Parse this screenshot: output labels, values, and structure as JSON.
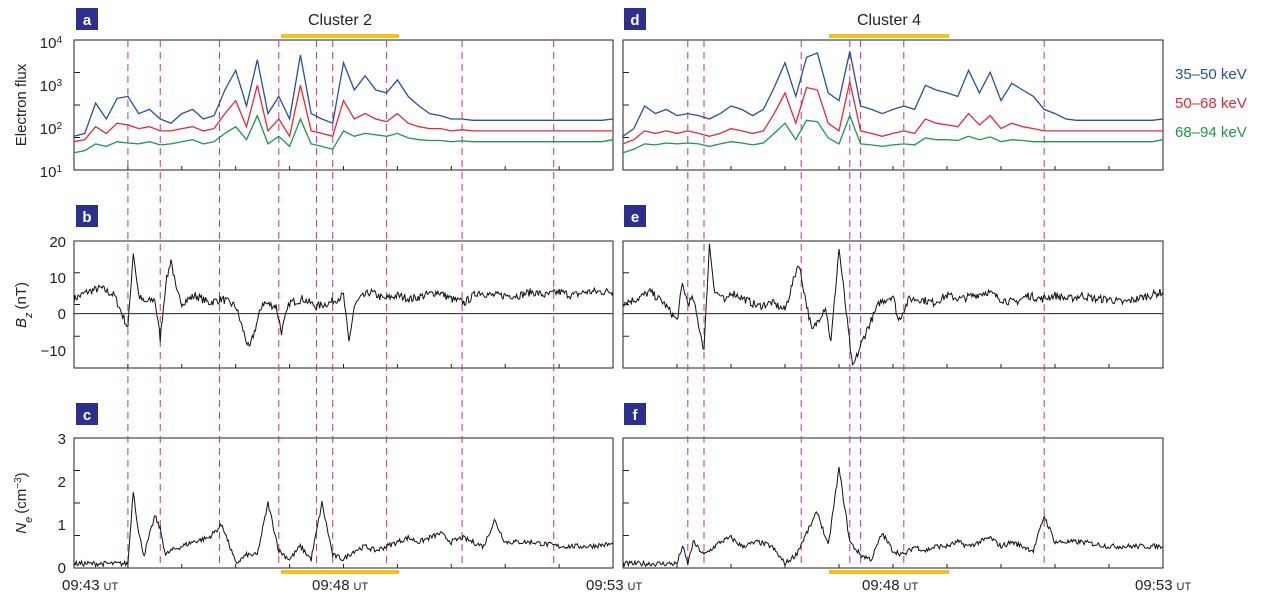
{
  "colors": {
    "flux_35_50": "#2b4f9e",
    "flux_50_68": "#e8283a",
    "flux_68_94": "#1a9a4a",
    "trace": "#111111",
    "dashed": "#b5359c",
    "bar": "#f2c21b",
    "tag_bg": "#2d2f8f"
  },
  "chart_data": [
    {
      "panel": "a",
      "type": "line",
      "title": "Cluster 2",
      "ylabel": "Electron flux",
      "yscale": "log",
      "yticks": [
        "10",
        "10",
        "10",
        "10"
      ],
      "ytick_exponents": [
        "1",
        "2",
        "3",
        "4"
      ],
      "ylim": [
        10,
        10000
      ],
      "series": [
        {
          "name": "35–50 keV",
          "x": [
            0,
            0.2,
            0.4,
            0.6,
            0.8,
            1.0,
            1.2,
            1.4,
            1.6,
            1.8,
            2.0,
            2.2,
            2.4,
            2.6,
            2.8,
            3.0,
            3.2,
            3.4,
            3.6,
            3.8,
            4.0,
            4.2,
            4.4,
            4.6,
            4.8,
            5.0,
            5.2,
            5.4,
            5.6,
            5.8,
            6.0,
            6.2,
            6.4,
            6.6,
            6.8,
            7.0,
            7.2,
            7.4,
            7.6,
            7.8,
            8.0,
            8.2,
            8.4,
            8.6,
            8.8,
            9.0,
            9.2,
            9.4,
            9.6,
            9.8,
            10.0
          ],
          "values": [
            60,
            70,
            350,
            150,
            450,
            500,
            200,
            250,
            150,
            120,
            200,
            250,
            150,
            180,
            700,
            2000,
            300,
            3500,
            200,
            500,
            150,
            4500,
            200,
            150,
            120,
            3000,
            700,
            1500,
            700,
            600,
            1200,
            500,
            300,
            200,
            180,
            150,
            150,
            140,
            140,
            140,
            140,
            140,
            140,
            140,
            140,
            140,
            140,
            140,
            140,
            140,
            150
          ]
        },
        {
          "name": "50–68 keV",
          "x": [
            0,
            0.2,
            0.4,
            0.6,
            0.8,
            1.0,
            1.2,
            1.4,
            1.6,
            1.8,
            2.0,
            2.2,
            2.4,
            2.6,
            2.8,
            3.0,
            3.2,
            3.4,
            3.6,
            3.8,
            4.0,
            4.2,
            4.4,
            4.6,
            4.8,
            5.0,
            5.2,
            5.4,
            5.6,
            5.8,
            6.0,
            6.2,
            6.4,
            6.6,
            6.8,
            7.0,
            7.2,
            7.4,
            7.6,
            7.8,
            8.0,
            8.2,
            8.4,
            8.6,
            8.8,
            9.0,
            9.2,
            9.4,
            9.6,
            9.8,
            10.0
          ],
          "values": [
            45,
            50,
            100,
            70,
            120,
            110,
            90,
            100,
            80,
            80,
            90,
            100,
            80,
            90,
            200,
            400,
            100,
            900,
            80,
            150,
            60,
            900,
            80,
            70,
            60,
            400,
            150,
            200,
            150,
            130,
            200,
            120,
            100,
            90,
            90,
            80,
            85,
            80,
            80,
            80,
            80,
            80,
            80,
            80,
            80,
            80,
            80,
            80,
            80,
            80,
            80
          ]
        },
        {
          "name": "68–94 keV",
          "x": [
            0,
            0.2,
            0.4,
            0.6,
            0.8,
            1.0,
            1.2,
            1.4,
            1.6,
            1.8,
            2.0,
            2.2,
            2.4,
            2.6,
            2.8,
            3.0,
            3.2,
            3.4,
            3.6,
            3.8,
            4.0,
            4.2,
            4.4,
            4.6,
            4.8,
            5.0,
            5.2,
            5.4,
            5.6,
            5.8,
            6.0,
            6.2,
            6.4,
            6.6,
            6.8,
            7.0,
            7.2,
            7.4,
            7.6,
            7.8,
            8.0,
            8.2,
            8.4,
            8.6,
            8.8,
            9.0,
            9.2,
            9.4,
            9.6,
            9.8,
            10.0
          ],
          "values": [
            25,
            28,
            40,
            35,
            45,
            42,
            40,
            45,
            38,
            40,
            45,
            50,
            40,
            45,
            70,
            100,
            50,
            180,
            40,
            60,
            35,
            150,
            40,
            35,
            30,
            80,
            60,
            70,
            65,
            60,
            70,
            55,
            50,
            48,
            48,
            45,
            47,
            45,
            45,
            45,
            45,
            45,
            45,
            45,
            45,
            45,
            45,
            45,
            45,
            45,
            50
          ]
        }
      ]
    },
    {
      "panel": "d",
      "type": "line",
      "title": "Cluster 4",
      "ylim": [
        10,
        10000
      ],
      "yscale": "log",
      "series": [
        {
          "name": "35–50 keV",
          "x": [
            0,
            0.2,
            0.4,
            0.6,
            0.8,
            1.0,
            1.2,
            1.4,
            1.6,
            1.8,
            2.0,
            2.2,
            2.4,
            2.6,
            2.8,
            3.0,
            3.2,
            3.4,
            3.6,
            3.8,
            4.0,
            4.2,
            4.4,
            4.6,
            4.8,
            5.0,
            5.2,
            5.4,
            5.6,
            5.8,
            6.0,
            6.2,
            6.4,
            6.6,
            6.8,
            7.0,
            7.2,
            7.4,
            7.6,
            7.8,
            8.0,
            8.2,
            8.4,
            8.6,
            8.8,
            9.0,
            9.2,
            9.4,
            9.6,
            9.8,
            10.0
          ],
          "values": [
            60,
            90,
            300,
            200,
            250,
            180,
            200,
            180,
            150,
            200,
            300,
            250,
            180,
            250,
            800,
            3000,
            500,
            4000,
            5000,
            600,
            400,
            5500,
            300,
            250,
            200,
            250,
            300,
            250,
            900,
            700,
            600,
            500,
            2000,
            600,
            1800,
            400,
            1000,
            700,
            500,
            250,
            200,
            150,
            140,
            140,
            140,
            140,
            140,
            140,
            140,
            140,
            150
          ]
        },
        {
          "name": "50–68 keV",
          "x": [
            0,
            0.2,
            0.4,
            0.6,
            0.8,
            1.0,
            1.2,
            1.4,
            1.6,
            1.8,
            2.0,
            2.2,
            2.4,
            2.6,
            2.8,
            3.0,
            3.2,
            3.4,
            3.6,
            3.8,
            4.0,
            4.2,
            4.4,
            4.6,
            4.8,
            5.0,
            5.2,
            5.4,
            5.6,
            5.8,
            6.0,
            6.2,
            6.4,
            6.6,
            6.8,
            7.0,
            7.2,
            7.4,
            7.6,
            7.8,
            8.0,
            8.2,
            8.4,
            8.6,
            8.8,
            9.0,
            9.2,
            9.4,
            9.6,
            9.8,
            10.0
          ],
          "values": [
            40,
            50,
            80,
            70,
            80,
            70,
            80,
            70,
            60,
            70,
            90,
            80,
            70,
            80,
            200,
            600,
            120,
            800,
            700,
            120,
            80,
            1100,
            80,
            70,
            60,
            70,
            80,
            70,
            150,
            120,
            110,
            100,
            200,
            110,
            180,
            90,
            120,
            100,
            90,
            80,
            80,
            80,
            80,
            80,
            80,
            80,
            80,
            80,
            80,
            80,
            80
          ]
        },
        {
          "name": "68–94 keV",
          "x": [
            0,
            0.2,
            0.4,
            0.6,
            0.8,
            1.0,
            1.2,
            1.4,
            1.6,
            1.8,
            2.0,
            2.2,
            2.4,
            2.6,
            2.8,
            3.0,
            3.2,
            3.4,
            3.6,
            3.8,
            4.0,
            4.2,
            4.4,
            4.6,
            4.8,
            5.0,
            5.2,
            5.4,
            5.6,
            5.8,
            6.0,
            6.2,
            6.4,
            6.6,
            6.8,
            7.0,
            7.2,
            7.4,
            7.6,
            7.8,
            8.0,
            8.2,
            8.4,
            8.6,
            8.8,
            9.0,
            9.2,
            9.4,
            9.6,
            9.8,
            10.0
          ],
          "values": [
            25,
            30,
            40,
            38,
            42,
            40,
            42,
            40,
            35,
            40,
            45,
            42,
            38,
            42,
            70,
            120,
            50,
            140,
            130,
            55,
            40,
            180,
            40,
            38,
            35,
            38,
            40,
            38,
            55,
            50,
            50,
            48,
            60,
            50,
            58,
            45,
            50,
            48,
            45,
            45,
            45,
            45,
            45,
            45,
            45,
            45,
            45,
            45,
            45,
            45,
            50
          ]
        }
      ]
    },
    {
      "panel": "b",
      "type": "line",
      "ylabel": "B",
      "ylabel_sub": "z",
      "ylabel_unit": "(nT)",
      "yticks": [
        "20",
        "10",
        "0",
        "−10"
      ],
      "ylim": [
        -15,
        20
      ],
      "x": [
        0,
        0.25,
        0.5,
        0.75,
        1.0,
        1.1,
        1.2,
        1.3,
        1.5,
        1.6,
        1.7,
        1.8,
        1.9,
        2.0,
        2.25,
        2.5,
        2.75,
        3.0,
        3.25,
        3.5,
        3.75,
        3.85,
        4.0,
        4.25,
        4.5,
        4.75,
        5.0,
        5.1,
        5.2,
        5.3,
        5.5,
        5.75,
        6.0,
        6.25,
        6.5,
        6.75,
        7.0,
        7.25,
        7.5,
        7.75,
        8.0,
        8.25,
        8.5,
        8.75,
        9.0,
        9.25,
        9.5,
        9.75,
        10.0
      ],
      "values": [
        4,
        6,
        7,
        5,
        -4,
        17,
        5,
        3,
        4,
        -7,
        8,
        15,
        6,
        3,
        5,
        3,
        4,
        2,
        -10,
        3,
        2,
        -5,
        3,
        4,
        2,
        3,
        5,
        -8,
        2,
        4,
        6,
        4,
        5,
        4,
        5,
        6,
        4,
        3,
        6,
        5,
        5,
        5,
        6,
        5,
        6,
        5,
        6,
        6,
        6
      ]
    },
    {
      "panel": "e",
      "type": "line",
      "ylim": [
        -15,
        20
      ],
      "x": [
        0,
        0.25,
        0.5,
        0.75,
        1.0,
        1.1,
        1.2,
        1.3,
        1.5,
        1.6,
        1.7,
        1.8,
        1.9,
        2.0,
        2.25,
        2.5,
        2.75,
        3.0,
        3.25,
        3.5,
        3.75,
        3.85,
        4.0,
        4.25,
        4.5,
        4.75,
        5.0,
        5.1,
        5.2,
        5.3,
        5.5,
        5.75,
        6.0,
        6.25,
        6.5,
        6.75,
        7.0,
        7.25,
        7.5,
        7.75,
        8.0,
        8.25,
        8.5,
        8.75,
        9.0,
        9.25,
        9.5,
        9.75,
        10.0
      ],
      "values": [
        3,
        4,
        6,
        3,
        -2,
        8,
        3,
        4,
        -10,
        19,
        6,
        5,
        3,
        6,
        4,
        2,
        3,
        1,
        14,
        -5,
        2,
        -8,
        18,
        -15,
        -5,
        3,
        5,
        -2,
        1,
        4,
        4,
        3,
        5,
        4,
        5,
        6,
        4,
        3,
        5,
        4,
        5,
        4,
        5,
        4,
        4,
        3,
        4,
        5,
        6
      ]
    },
    {
      "panel": "c",
      "type": "line",
      "ylabel": "N",
      "ylabel_sub": "e",
      "ylabel_unit": "(cm",
      "ylabel_sup": "−3",
      "ylabel_close": ")",
      "yticks": [
        "3",
        "2",
        "1",
        "0"
      ],
      "ylim": [
        0,
        3
      ],
      "x": [
        0,
        0.5,
        1.0,
        1.1,
        1.2,
        1.3,
        1.5,
        1.6,
        1.7,
        1.8,
        2.0,
        2.2,
        2.5,
        2.75,
        3.0,
        3.2,
        3.4,
        3.6,
        3.8,
        4.0,
        4.2,
        4.4,
        4.6,
        4.8,
        5.0,
        5.2,
        5.4,
        5.6,
        5.8,
        6.0,
        6.2,
        6.4,
        6.6,
        6.8,
        7.0,
        7.2,
        7.4,
        7.6,
        7.8,
        8.0,
        8.5,
        9.0,
        9.5,
        10.0
      ],
      "values": [
        0.1,
        0.1,
        0.1,
        1.8,
        0.8,
        0.3,
        1.2,
        0.9,
        0.3,
        0.4,
        0.5,
        0.6,
        0.7,
        1.0,
        0.1,
        0.3,
        0.3,
        1.5,
        0.4,
        0.2,
        0.5,
        0.2,
        1.5,
        0.3,
        0.2,
        0.4,
        0.5,
        0.4,
        0.5,
        0.6,
        0.7,
        0.6,
        0.7,
        0.8,
        0.6,
        0.7,
        0.6,
        0.5,
        1.1,
        0.6,
        0.6,
        0.5,
        0.5,
        0.55
      ]
    },
    {
      "panel": "f",
      "type": "line",
      "ylim": [
        0,
        3
      ],
      "x": [
        0,
        0.5,
        1.0,
        1.1,
        1.2,
        1.3,
        1.5,
        1.6,
        1.7,
        1.8,
        2.0,
        2.2,
        2.5,
        2.75,
        3.0,
        3.2,
        3.4,
        3.6,
        3.8,
        4.0,
        4.2,
        4.4,
        4.6,
        4.8,
        5.0,
        5.2,
        5.4,
        5.6,
        5.8,
        6.0,
        6.2,
        6.4,
        6.6,
        6.8,
        7.0,
        7.2,
        7.4,
        7.6,
        7.8,
        8.0,
        8.5,
        9.0,
        9.5,
        10.0
      ],
      "values": [
        0.1,
        0.1,
        0.1,
        0.5,
        0.1,
        0.6,
        0.3,
        0.4,
        0.5,
        0.6,
        0.7,
        0.5,
        0.6,
        0.5,
        0.1,
        0.3,
        0.8,
        1.3,
        0.5,
        2.3,
        0.6,
        0.3,
        0.2,
        0.8,
        0.4,
        0.3,
        0.5,
        0.4,
        0.5,
        0.5,
        0.6,
        0.5,
        0.6,
        0.7,
        0.5,
        0.6,
        0.5,
        0.4,
        1.2,
        0.6,
        0.6,
        0.5,
        0.5,
        0.5
      ]
    }
  ],
  "legend": [
    {
      "label": "35–50 keV",
      "color_key": "flux_35_50"
    },
    {
      "label": "50–68 keV",
      "color_key": "flux_50_68"
    },
    {
      "label": "68–94 keV",
      "color_key": "flux_68_94"
    }
  ],
  "x_axis": {
    "left": {
      "start": "09:43",
      "mid": "09:48",
      "end": "09:53"
    },
    "right": {
      "mid": "09:48",
      "end": "09:53"
    },
    "unit": "UT"
  },
  "dashed_lines": {
    "left": [
      1.0,
      1.6,
      2.7,
      3.8,
      4.5,
      4.8,
      5.8,
      7.2,
      8.9
    ],
    "right": [
      1.2,
      1.5,
      3.3,
      4.2,
      4.4,
      5.2,
      7.8
    ]
  },
  "bars": {
    "left": [
      3.9,
      6.2
    ],
    "right": [
      4.4,
      6.8
    ]
  },
  "panel_labels": [
    "a",
    "b",
    "c",
    "d",
    "e",
    "f"
  ],
  "titles": {
    "left": "Cluster 2",
    "right": "Cluster 4"
  }
}
